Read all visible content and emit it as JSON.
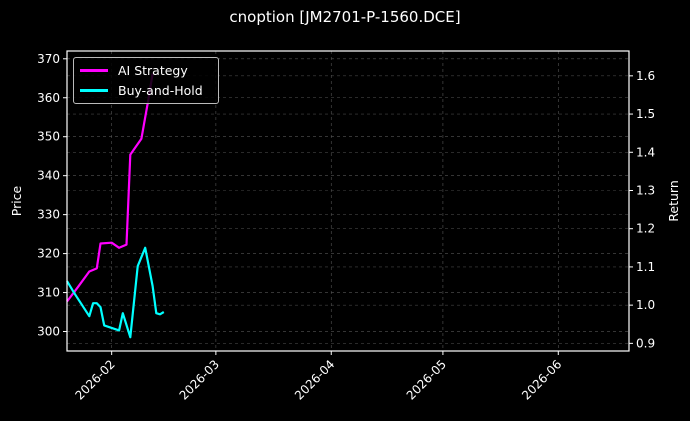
{
  "title": "cnoption [JM2701-P-1560.DCE]",
  "chart_data": {
    "type": "line",
    "title": "cnoption [JM2701-P-1560.DCE]",
    "xlabel": "",
    "ylabel": "Price",
    "ylabel_right": "Return",
    "ylim": [
      295,
      372
    ],
    "ylim_right": [
      0.88,
      1.665
    ],
    "xlim": [
      "2026-01-20",
      "2026-06-20"
    ],
    "grid": true,
    "legend_position": "upper left",
    "x_ticks": [
      "2026-02",
      "2026-03",
      "2026-04",
      "2026-05",
      "2026-06"
    ],
    "y_ticks": [
      300,
      310,
      320,
      330,
      340,
      350,
      360,
      370
    ],
    "y_ticks_right": [
      0.9,
      1.0,
      1.1,
      1.2,
      1.3,
      1.4,
      1.5,
      1.6
    ],
    "series": [
      {
        "name": "AI Strategy",
        "axis": "left",
        "color": "#ff00ff",
        "x": [
          "2026-01-20",
          "2026-01-23",
          "2026-01-26",
          "2026-01-28",
          "2026-01-29",
          "2026-02-01",
          "2026-02-03",
          "2026-02-05",
          "2026-02-06",
          "2026-02-09",
          "2026-02-11",
          "2026-02-12"
        ],
        "values": [
          307.7,
          311.5,
          315.4,
          316.2,
          322.6,
          322.8,
          321.5,
          322.3,
          345.4,
          349.5,
          360.3,
          366.2
        ]
      },
      {
        "name": "Buy-and-Hold",
        "axis": "right",
        "color": "#00ffff",
        "x": [
          "2026-01-20",
          "2026-01-22",
          "2026-01-26",
          "2026-01-27",
          "2026-01-28",
          "2026-01-29",
          "2026-01-30",
          "2026-02-03",
          "2026-02-04",
          "2026-02-06",
          "2026-02-08",
          "2026-02-10",
          "2026-02-12",
          "2026-02-13",
          "2026-02-14",
          "2026-02-15"
        ],
        "values": [
          1.063,
          1.031,
          0.971,
          1.005,
          1.005,
          0.995,
          0.947,
          0.934,
          0.979,
          0.916,
          1.102,
          1.15,
          1.05,
          0.979,
          0.976,
          0.982
        ]
      }
    ]
  },
  "legend": {
    "items": [
      {
        "label": "AI Strategy",
        "color": "#ff00ff"
      },
      {
        "label": "Buy-and-Hold",
        "color": "#00ffff"
      }
    ]
  }
}
